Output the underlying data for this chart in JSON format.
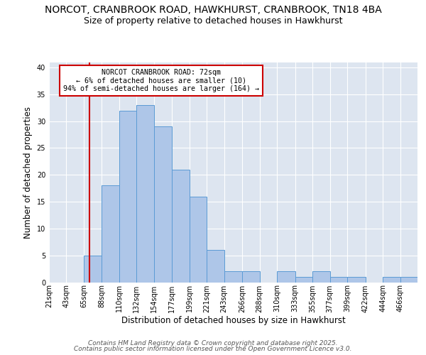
{
  "title1": "NORCOT, CRANBROOK ROAD, HAWKHURST, CRANBROOK, TN18 4BA",
  "title2": "Size of property relative to detached houses in Hawkhurst",
  "xlabel": "Distribution of detached houses by size in Hawkhurst",
  "ylabel": "Number of detached properties",
  "bins": [
    21,
    43,
    65,
    88,
    110,
    132,
    154,
    177,
    199,
    221,
    243,
    266,
    288,
    310,
    333,
    355,
    377,
    399,
    422,
    444,
    466
  ],
  "values": [
    0,
    0,
    5,
    18,
    32,
    33,
    29,
    21,
    16,
    6,
    2,
    2,
    0,
    2,
    1,
    2,
    1,
    1,
    0,
    1,
    1
  ],
  "bar_color": "#aec6e8",
  "bar_edge_color": "#5b9bd5",
  "red_line_x": 72,
  "annotation_title": "NORCOT CRANBROOK ROAD: 72sqm",
  "annotation_line1": "← 6% of detached houses are smaller (10)",
  "annotation_line2": "94% of semi-detached houses are larger (164) →",
  "annotation_box_color": "#ffffff",
  "annotation_box_edge": "#cc0000",
  "red_line_color": "#cc0000",
  "ylim": [
    0,
    41
  ],
  "yticks": [
    0,
    5,
    10,
    15,
    20,
    25,
    30,
    35,
    40
  ],
  "background_color": "#dde5f0",
  "footer_line1": "Contains HM Land Registry data © Crown copyright and database right 2025.",
  "footer_line2": "Contains public sector information licensed under the Open Government Licence v3.0.",
  "title1_fontsize": 10,
  "title2_fontsize": 9,
  "xlabel_fontsize": 8.5,
  "ylabel_fontsize": 8.5,
  "tick_fontsize": 7,
  "footer_fontsize": 6.5
}
